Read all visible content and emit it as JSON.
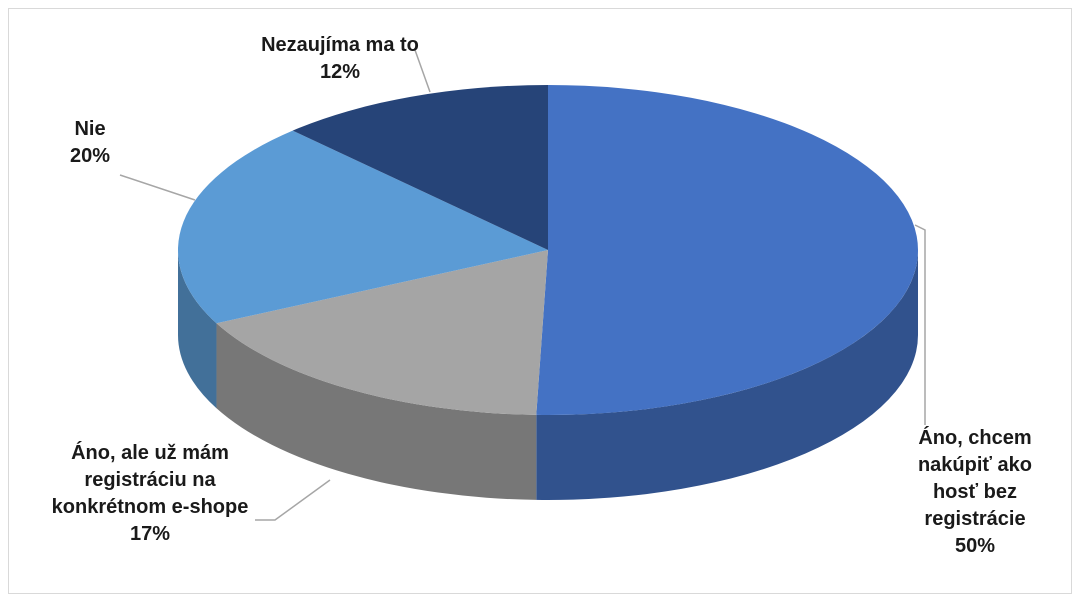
{
  "chart_data": {
    "type": "pie",
    "categories": [
      "Áno, chcem nakúpiť ako hosť bez registrácie",
      "Áno, ale už mám registráciu na konkrétnom e-shope",
      "Nie",
      "Nezaujíma ma to"
    ],
    "values": [
      50,
      17,
      20,
      12
    ],
    "value_labels": [
      "50%",
      "17%",
      "20%",
      "12%"
    ],
    "colors": [
      "#4472c4",
      "#a5a5a5",
      "#5b9bd5",
      "#264478"
    ]
  }
}
